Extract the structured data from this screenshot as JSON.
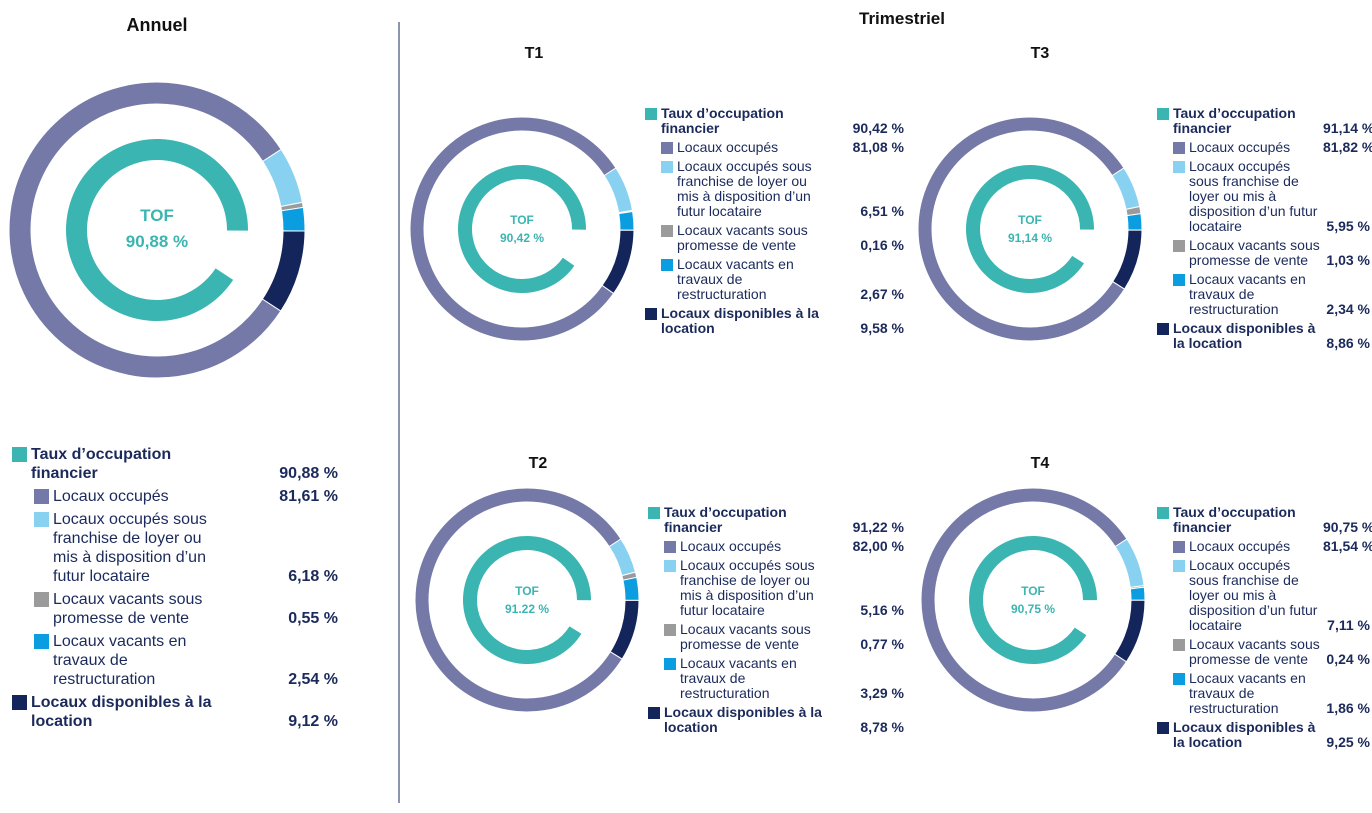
{
  "group_title": "Trimestriel",
  "chart_data": [
    {
      "type": "donut",
      "title": "Annuel",
      "center_label": "TOF",
      "center_value_label": "90,88 %",
      "inner": {
        "name": "Taux d’occupation financier",
        "color": "#3bb5b1",
        "value": 90.88,
        "value_label": "90,88 %"
      },
      "categories": [
        "Locaux occupés",
        "Locaux occupés sous franchise de loyer ou mis à disposition d’un futur locataire",
        "Locaux vacants sous promesse de vente",
        "Locaux vacants en travaux de restructuration",
        "Locaux disponibles à la location"
      ],
      "values": [
        81.61,
        6.18,
        0.55,
        2.54,
        9.12
      ],
      "value_labels": [
        "81,61 %",
        "6,18 %",
        "0,55 %",
        "2,54 %",
        "9,12 %"
      ],
      "colors": [
        "#7479a8",
        "#88d1f1",
        "#9b9b9b",
        "#0a9de0",
        "#13255a"
      ]
    },
    {
      "type": "donut",
      "title": "T1",
      "center_label": "TOF",
      "center_value_label": "90,42 %",
      "inner": {
        "name": "Taux d’occupation financier",
        "color": "#3bb5b1",
        "value": 90.42,
        "value_label": "90,42 %"
      },
      "categories": [
        "Locaux occupés",
        "Locaux occupés sous franchise de loyer ou mis à disposition d’un futur locataire",
        "Locaux vacants sous promesse de vente",
        "Locaux vacants en travaux de restructuration",
        "Locaux disponibles à la location"
      ],
      "values": [
        81.08,
        6.51,
        0.16,
        2.67,
        9.58
      ],
      "value_labels": [
        "81,08 %",
        "6,51 %",
        "0,16 %",
        "2,67 %",
        "9,58 %"
      ],
      "colors": [
        "#7479a8",
        "#88d1f1",
        "#9b9b9b",
        "#0a9de0",
        "#13255a"
      ]
    },
    {
      "type": "donut",
      "title": "T3",
      "center_label": "TOF",
      "center_value_label": "91,14 %",
      "inner": {
        "name": "Taux d’occupation financier",
        "color": "#3bb5b1",
        "value": 91.14,
        "value_label": "91,14 %"
      },
      "categories": [
        "Locaux occupés",
        "Locaux occupés sous franchise de loyer ou mis à disposition d’un futur locataire",
        "Locaux vacants sous promesse de vente",
        "Locaux vacants en travaux de restructuration",
        "Locaux disponibles à la location"
      ],
      "values": [
        81.82,
        5.95,
        1.03,
        2.34,
        8.86
      ],
      "value_labels": [
        "81,82 %",
        "5,95 %",
        "1,03 %",
        "2,34 %",
        "8,86 %"
      ],
      "colors": [
        "#7479a8",
        "#88d1f1",
        "#9b9b9b",
        "#0a9de0",
        "#13255a"
      ]
    },
    {
      "type": "donut",
      "title": "T2",
      "center_label": "TOF",
      "center_value_label": "91.22 %",
      "inner": {
        "name": "Taux d’occupation financier",
        "color": "#3bb5b1",
        "value": 91.22,
        "value_label": "91,22 %"
      },
      "categories": [
        "Locaux occupés",
        "Locaux occupés sous franchise de loyer ou mis à disposition d’un futur locataire",
        "Locaux vacants sous promesse de vente",
        "Locaux vacants en travaux de restructuration",
        "Locaux disponibles à la location"
      ],
      "values": [
        82.0,
        5.16,
        0.77,
        3.29,
        8.78
      ],
      "value_labels": [
        "82,00 %",
        "5,16 %",
        "0,77 %",
        "3,29 %",
        "8,78 %"
      ],
      "colors": [
        "#7479a8",
        "#88d1f1",
        "#9b9b9b",
        "#0a9de0",
        "#13255a"
      ]
    },
    {
      "type": "donut",
      "title": "T4",
      "center_label": "TOF",
      "center_value_label": "90,75 %",
      "inner": {
        "name": "Taux d’occupation financier",
        "color": "#3bb5b1",
        "value": 90.75,
        "value_label": "90,75 %"
      },
      "categories": [
        "Locaux occupés",
        "Locaux occupés sous franchise de loyer ou mis à disposition d’un futur locataire",
        "Locaux vacants sous promesse de vente",
        "Locaux vacants en travaux de restructuration",
        "Locaux disponibles à la location"
      ],
      "values": [
        81.54,
        7.11,
        0.24,
        1.86,
        9.25
      ],
      "value_labels": [
        "81,54 %",
        "7,11 %",
        "0,24 %",
        "1,86 %",
        "9,25 %"
      ],
      "colors": [
        "#7479a8",
        "#88d1f1",
        "#9b9b9b",
        "#0a9de0",
        "#13255a"
      ]
    }
  ]
}
